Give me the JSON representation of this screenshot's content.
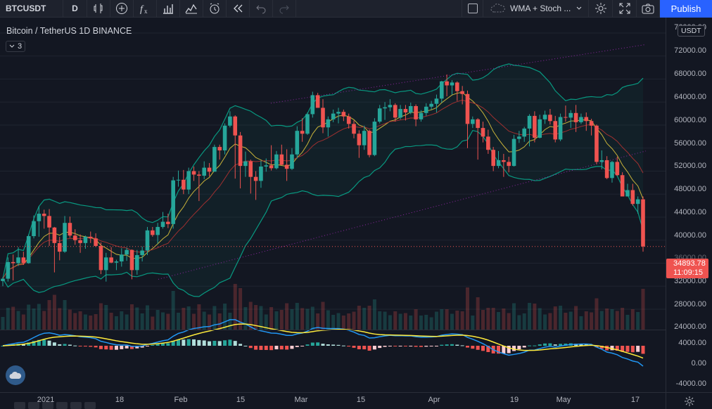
{
  "toolbar": {
    "symbol": "BTCUSDT",
    "interval": "D",
    "template_name": "WMA + Stoch ...",
    "publish_label": "Publish",
    "icons": [
      "compare-plus-icon",
      "indicators-fx-icon",
      "bar-chart-icon",
      "line-chart-icon",
      "alert-clock-icon",
      "replay-icon",
      "undo-icon",
      "redo-icon",
      "layout-square-icon",
      "cloud-icon",
      "chevron-down-icon",
      "settings-gear-icon",
      "fullscreen-icon",
      "camera-icon"
    ]
  },
  "legend": {
    "title": "Bitcoin / TetherUS  1D  BINANCE",
    "collapsed_count": "3"
  },
  "price_scale": {
    "currency": "USDT",
    "labels": [
      "72000.00",
      "68000.00",
      "64000.00",
      "60000.00",
      "56000.00",
      "52000.00",
      "48000.00",
      "44000.00",
      "40000.00",
      "36000.00",
      "32000.00",
      "28000.00",
      "24000.00"
    ],
    "top_partial": "76000.00"
  },
  "last_price": {
    "price": "34893.78",
    "countdown": "11:09:15",
    "color": "#ef5350"
  },
  "macd_scale": {
    "labels": [
      "4000.00",
      "0.00",
      "-4000.00"
    ]
  },
  "time_axis": {
    "labels": [
      "2021",
      "18",
      "Feb",
      "15",
      "Mar",
      "15",
      "Apr",
      "19",
      "May",
      "17"
    ]
  },
  "colors": {
    "up": "#26a69a",
    "down": "#ef5350",
    "accent": "#2962ff",
    "background": "#131722",
    "macd": "#2196f3",
    "signal": "#ffeb3b",
    "bb": "#089981"
  },
  "chart_data": {
    "type": "candlestick",
    "symbol": "BTCUSDT",
    "interval": "1D",
    "ylim": [
      24000,
      76000
    ],
    "candles_ohlc": [
      [
        28900,
        29600,
        28000,
        29300
      ],
      [
        29300,
        33000,
        28800,
        32200
      ],
      [
        32200,
        33500,
        29000,
        32000
      ],
      [
        32000,
        34800,
        31500,
        33000
      ],
      [
        33000,
        34000,
        31700,
        32000
      ],
      [
        32000,
        37000,
        31900,
        36700
      ],
      [
        36700,
        40300,
        36300,
        39300
      ],
      [
        39300,
        41900,
        36600,
        40600
      ],
      [
        40600,
        41300,
        38000,
        40200
      ],
      [
        40200,
        41400,
        35000,
        38200
      ],
      [
        38200,
        38300,
        30400,
        35500
      ],
      [
        35500,
        36600,
        32500,
        34000
      ],
      [
        34000,
        40200,
        33800,
        39000
      ],
      [
        39000,
        40100,
        36400,
        36800
      ],
      [
        36800,
        37900,
        35200,
        36000
      ],
      [
        36000,
        37000,
        33800,
        35500
      ],
      [
        35500,
        36800,
        34500,
        36600
      ],
      [
        36600,
        37500,
        35500,
        36300
      ],
      [
        36300,
        37200,
        34800,
        35000
      ],
      [
        35000,
        35600,
        30100,
        30800
      ],
      [
        30800,
        33800,
        28800,
        33000
      ],
      [
        33000,
        34800,
        32000,
        32100
      ],
      [
        32100,
        32600,
        30800,
        32300
      ],
      [
        32300,
        34600,
        31400,
        33500
      ],
      [
        33500,
        34700,
        32400,
        34300
      ],
      [
        34300,
        34400,
        29200,
        30800
      ],
      [
        30800,
        34300,
        30000,
        33400
      ],
      [
        33400,
        34900,
        32300,
        34200
      ],
      [
        34200,
        38300,
        33400,
        37700
      ],
      [
        37700,
        38300,
        36600,
        36900
      ],
      [
        36900,
        39000,
        35400,
        38300
      ],
      [
        38300,
        40900,
        38000,
        39200
      ],
      [
        39200,
        40600,
        38100,
        38800
      ],
      [
        38800,
        47000,
        38000,
        46400
      ],
      [
        46400,
        48100,
        45300,
        46500
      ],
      [
        46500,
        48200,
        44000,
        44800
      ],
      [
        44800,
        48600,
        44000,
        48000
      ],
      [
        48000,
        48800,
        46300,
        47400
      ],
      [
        47400,
        48000,
        42800,
        47200
      ],
      [
        47200,
        49700,
        46600,
        48600
      ],
      [
        48600,
        49400,
        47100,
        47900
      ],
      [
        47900,
        52600,
        47900,
        52200
      ],
      [
        52200,
        52600,
        50000,
        51600
      ],
      [
        51600,
        56300,
        50900,
        55900
      ],
      [
        55900,
        58400,
        55600,
        57500
      ],
      [
        57500,
        57700,
        46700,
        54200
      ],
      [
        54200,
        54800,
        45000,
        48900
      ],
      [
        48900,
        51400,
        47000,
        49700
      ],
      [
        49700,
        50000,
        44100,
        47000
      ],
      [
        47000,
        48000,
        43000,
        46300
      ],
      [
        46300,
        49800,
        45100,
        48800
      ],
      [
        48800,
        50200,
        47900,
        49000
      ],
      [
        49000,
        52500,
        48100,
        48500
      ],
      [
        48500,
        51500,
        48300,
        50900
      ],
      [
        50900,
        52600,
        49000,
        49100
      ],
      [
        49100,
        51800,
        46300,
        48400
      ],
      [
        48400,
        52000,
        48200,
        50900
      ],
      [
        50900,
        55800,
        50200,
        55000
      ],
      [
        55000,
        57200,
        53100,
        54500
      ],
      [
        54500,
        58200,
        54300,
        57900
      ],
      [
        57900,
        61800,
        57300,
        61200
      ],
      [
        61200,
        61600,
        59000,
        59000
      ],
      [
        59000,
        60500,
        54600,
        55600
      ],
      [
        55600,
        57500,
        54000,
        57000
      ],
      [
        57000,
        58700,
        56500,
        58000
      ],
      [
        58000,
        59000,
        56300,
        58300
      ],
      [
        58300,
        58700,
        56700,
        57500
      ],
      [
        57500,
        58000,
        55400,
        56200
      ],
      [
        56200,
        56800,
        53700,
        54500
      ],
      [
        54500,
        55100,
        50300,
        52500
      ],
      [
        52500,
        55900,
        51700,
        55000
      ],
      [
        55000,
        55200,
        50400,
        50800
      ],
      [
        50800,
        57200,
        50600,
        56600
      ],
      [
        56600,
        59500,
        56300,
        58900
      ],
      [
        58900,
        60000,
        56900,
        59100
      ],
      [
        59100,
        60500,
        58400,
        59500
      ],
      [
        59500,
        59800,
        56600,
        57300
      ],
      [
        57300,
        59500,
        57000,
        58800
      ],
      [
        58800,
        59500,
        56800,
        58200
      ],
      [
        58200,
        59900,
        57900,
        59300
      ],
      [
        59300,
        59600,
        55800,
        57000
      ],
      [
        57000,
        58600,
        56600,
        58100
      ],
      [
        58100,
        59800,
        57600,
        59200
      ],
      [
        59200,
        60200,
        58700,
        59700
      ],
      [
        59700,
        61300,
        58200,
        60600
      ],
      [
        60600,
        63700,
        59900,
        63600
      ],
      [
        63600,
        64800,
        61000,
        62900
      ],
      [
        62900,
        63800,
        61300,
        63400
      ],
      [
        63400,
        63600,
        60200,
        61900
      ],
      [
        61900,
        62800,
        59600,
        61400
      ],
      [
        61400,
        62000,
        52000,
        56200
      ],
      [
        56200,
        57500,
        55500,
        57000
      ],
      [
        57000,
        57200,
        50000,
        55500
      ],
      [
        55500,
        56600,
        53000,
        54000
      ],
      [
        54000,
        55200,
        51000,
        51700
      ],
      [
        51700,
        52200,
        48000,
        48900
      ],
      [
        48900,
        51500,
        48500,
        49900
      ],
      [
        49900,
        51000,
        47000,
        49600
      ],
      [
        49600,
        50500,
        47800,
        48900
      ],
      [
        48900,
        54300,
        48800,
        53600
      ],
      [
        53600,
        55000,
        52900,
        54000
      ],
      [
        54000,
        55700,
        53100,
        55400
      ],
      [
        55400,
        57900,
        52300,
        57600
      ],
      [
        57600,
        58400,
        53000,
        53800
      ],
      [
        53800,
        57800,
        53700,
        57000
      ],
      [
        57000,
        58500,
        56200,
        57800
      ],
      [
        57800,
        58800,
        56100,
        56700
      ],
      [
        56700,
        57600,
        53000,
        53500
      ],
      [
        53500,
        58000,
        53200,
        57400
      ],
      [
        57400,
        59400,
        56600,
        57300
      ],
      [
        57300,
        58600,
        55500,
        58100
      ],
      [
        58100,
        59500,
        54800,
        56500
      ],
      [
        56500,
        58000,
        56200,
        57400
      ],
      [
        57400,
        58200,
        55000,
        56700
      ],
      [
        56700,
        57100,
        54200,
        55900
      ],
      [
        55900,
        56100,
        49200,
        49600
      ],
      [
        49600,
        51600,
        48300,
        49900
      ],
      [
        49900,
        50600,
        46600,
        46800
      ],
      [
        46800,
        49800,
        46000,
        49600
      ],
      [
        49600,
        50500,
        47200,
        47300
      ],
      [
        47300,
        47800,
        43600,
        43600
      ],
      [
        43600,
        45800,
        43600,
        44700
      ],
      [
        44700,
        45800,
        42000,
        42300
      ],
      [
        42300,
        43600,
        40600,
        43100
      ],
      [
        43100,
        43600,
        34000,
        34900
      ]
    ],
    "indicators": [
      "Bollinger Bands",
      "WMA",
      "Volume",
      "MACD"
    ]
  }
}
